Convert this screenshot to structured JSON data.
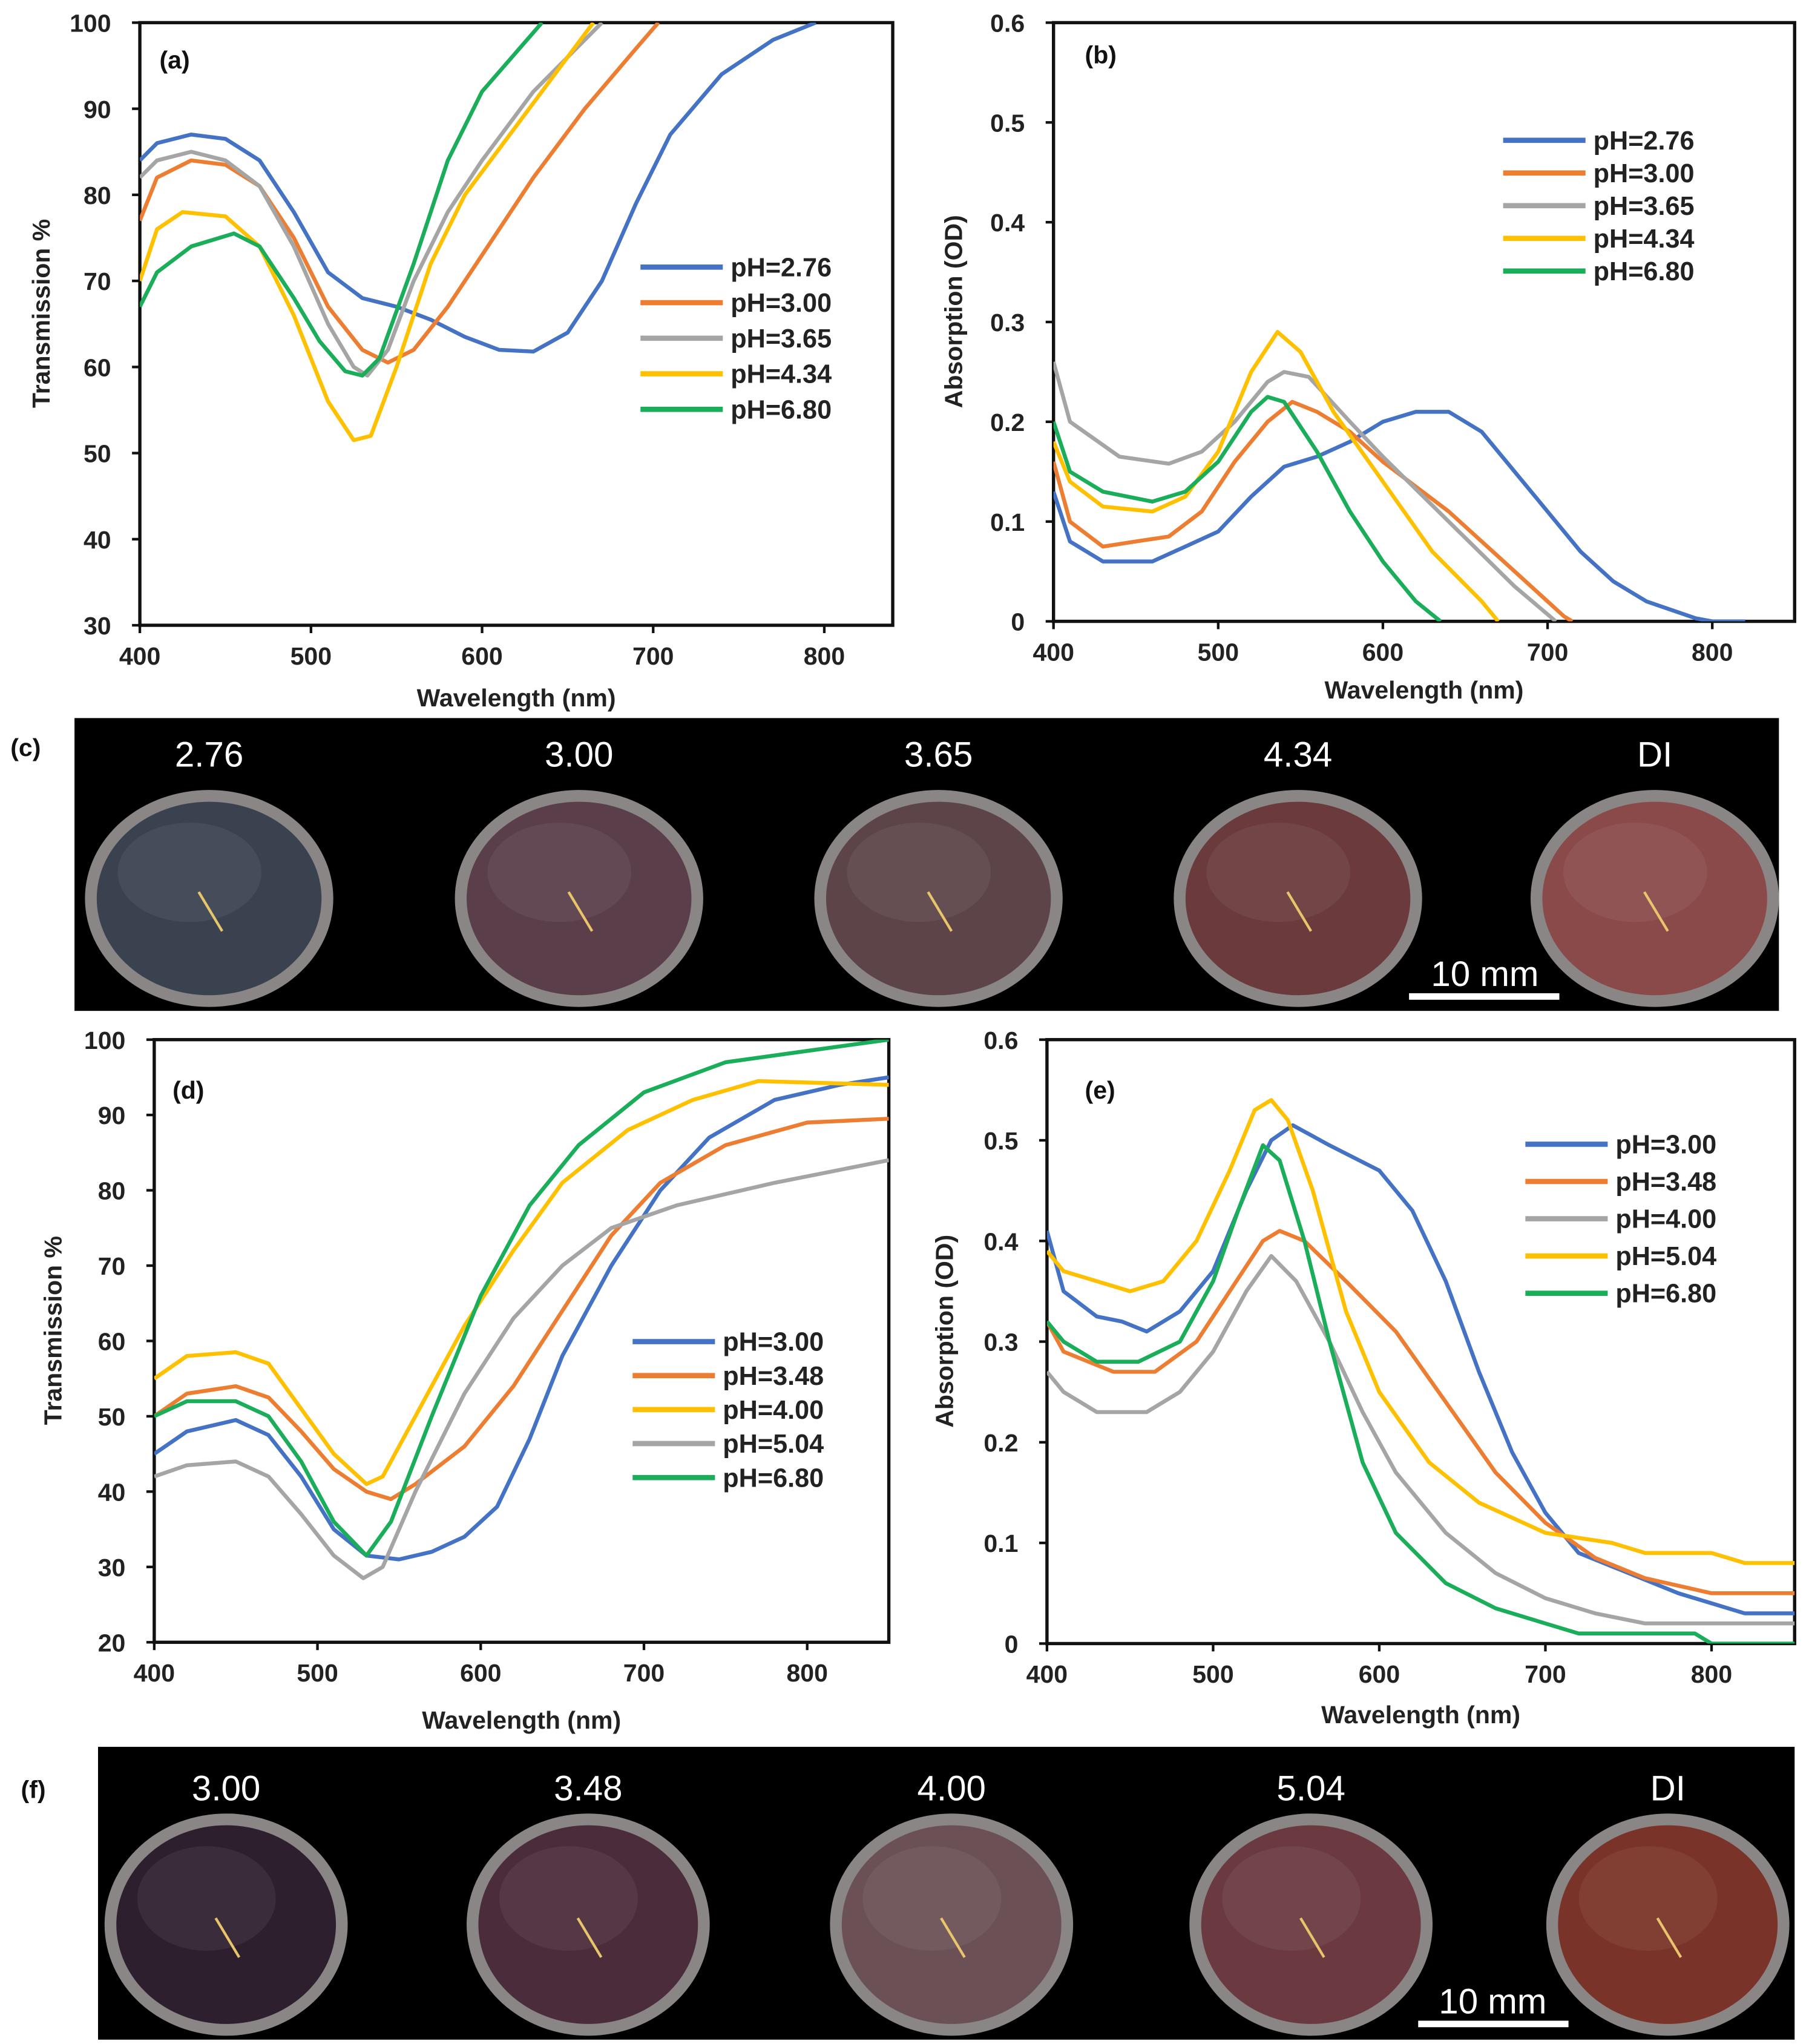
{
  "colors": {
    "blue": "#4472c4",
    "orange": "#ed7d31",
    "gray": "#a5a5a5",
    "yellow": "#ffc000",
    "green": "#1aae5a"
  },
  "chart_data": [
    {
      "panel": "(a)",
      "type": "line",
      "xlabel": "Wavelength (nm)",
      "ylabel": "Transmission %",
      "xlim": [
        400,
        840
      ],
      "ylim": [
        30,
        100
      ],
      "xticks": [
        "400",
        "500",
        "600",
        "700",
        "800"
      ],
      "yticks": [
        "30",
        "40",
        "50",
        "60",
        "70",
        "80",
        "90",
        "100"
      ],
      "legend_position": "right-middle",
      "series": [
        {
          "name": "pH=2.76",
          "color": "blue",
          "x": [
            400,
            410,
            430,
            450,
            470,
            490,
            510,
            530,
            550,
            570,
            590,
            610,
            630,
            650,
            670,
            690,
            710,
            740,
            770,
            795
          ],
          "y": [
            84,
            86,
            87,
            86.5,
            84,
            78,
            71,
            68,
            67,
            65.5,
            63.5,
            62,
            61.8,
            64,
            70,
            79,
            87,
            94,
            98,
            100
          ]
        },
        {
          "name": "pH=3.00",
          "color": "orange",
          "x": [
            400,
            410,
            430,
            450,
            470,
            490,
            510,
            530,
            545,
            560,
            580,
            600,
            630,
            660,
            690,
            703
          ],
          "y": [
            77,
            82,
            84,
            83.5,
            81,
            75,
            67,
            62,
            60.5,
            62,
            67,
            73,
            82,
            90,
            97,
            100
          ]
        },
        {
          "name": "pH=3.65",
          "color": "gray",
          "x": [
            400,
            410,
            430,
            450,
            470,
            490,
            510,
            525,
            533,
            545,
            560,
            580,
            600,
            630,
            670
          ],
          "y": [
            82,
            84,
            85,
            84,
            81,
            74,
            65,
            60,
            59,
            62,
            70,
            78,
            84,
            92,
            100
          ]
        },
        {
          "name": "pH=4.34",
          "color": "yellow",
          "x": [
            400,
            410,
            425,
            450,
            470,
            490,
            510,
            525,
            535,
            550,
            570,
            590,
            620,
            665
          ],
          "y": [
            70,
            76,
            78,
            77.5,
            74,
            66,
            56,
            51.5,
            52,
            60,
            72,
            80,
            88,
            100
          ]
        },
        {
          "name": "pH=6.80",
          "color": "green",
          "x": [
            400,
            410,
            430,
            455,
            470,
            490,
            505,
            520,
            530,
            540,
            560,
            580,
            600,
            635
          ],
          "y": [
            67,
            71,
            74,
            75.5,
            74,
            68,
            63,
            59.5,
            59,
            61,
            72,
            84,
            92,
            100
          ]
        }
      ]
    },
    {
      "panel": "(b)",
      "type": "line",
      "xlabel": "Wavelength (nm)",
      "ylabel": "Absorption (OD)",
      "xlim": [
        400,
        850
      ],
      "ylim": [
        0,
        0.6
      ],
      "xticks": [
        "400",
        "500",
        "600",
        "700",
        "800"
      ],
      "yticks": [
        "0",
        "0.1",
        "0.2",
        "0.3",
        "0.4",
        "0.5",
        "0.6"
      ],
      "legend_position": "top-right",
      "series": [
        {
          "name": "pH=2.76",
          "color": "blue",
          "x": [
            400,
            410,
            430,
            460,
            480,
            500,
            520,
            540,
            560,
            580,
            600,
            620,
            640,
            660,
            680,
            700,
            720,
            740,
            760,
            790,
            800,
            820
          ],
          "y": [
            0.13,
            0.08,
            0.06,
            0.06,
            0.075,
            0.09,
            0.125,
            0.155,
            0.165,
            0.18,
            0.2,
            0.21,
            0.21,
            0.19,
            0.15,
            0.11,
            0.07,
            0.04,
            0.02,
            0.003,
            0,
            0
          ]
        },
        {
          "name": "pH=3.00",
          "color": "orange",
          "x": [
            400,
            410,
            430,
            450,
            470,
            490,
            510,
            530,
            545,
            560,
            580,
            600,
            640,
            680,
            710,
            715
          ],
          "y": [
            0.16,
            0.1,
            0.075,
            0.08,
            0.085,
            0.11,
            0.16,
            0.2,
            0.22,
            0.21,
            0.19,
            0.16,
            0.11,
            0.05,
            0.005,
            0
          ]
        },
        {
          "name": "pH=3.65",
          "color": "gray",
          "x": [
            400,
            410,
            440,
            470,
            490,
            510,
            530,
            540,
            555,
            580,
            600,
            640,
            680,
            705
          ],
          "y": [
            0.26,
            0.2,
            0.165,
            0.158,
            0.17,
            0.2,
            0.24,
            0.25,
            0.245,
            0.2,
            0.165,
            0.1,
            0.035,
            0
          ]
        },
        {
          "name": "pH=4.34",
          "color": "yellow",
          "x": [
            400,
            410,
            430,
            460,
            480,
            500,
            520,
            536,
            550,
            570,
            600,
            630,
            660,
            670
          ],
          "y": [
            0.18,
            0.14,
            0.115,
            0.11,
            0.125,
            0.17,
            0.25,
            0.29,
            0.27,
            0.21,
            0.14,
            0.07,
            0.02,
            0
          ]
        },
        {
          "name": "pH=6.80",
          "color": "green",
          "x": [
            400,
            410,
            430,
            460,
            480,
            500,
            520,
            530,
            540,
            560,
            580,
            600,
            620,
            635
          ],
          "y": [
            0.2,
            0.15,
            0.13,
            0.12,
            0.13,
            0.16,
            0.21,
            0.225,
            0.22,
            0.17,
            0.11,
            0.06,
            0.02,
            0
          ]
        }
      ]
    },
    {
      "panel": "(d)",
      "type": "line",
      "xlabel": "Wavelength (nm)",
      "ylabel": "Transmission %",
      "xlim": [
        400,
        850
      ],
      "ylim": [
        20,
        100
      ],
      "xticks": [
        "400",
        "500",
        "600",
        "700",
        "800"
      ],
      "yticks": [
        "20",
        "30",
        "40",
        "50",
        "60",
        "70",
        "80",
        "90",
        "100"
      ],
      "legend_position": "right-middle",
      "series": [
        {
          "name": "pH=3.00",
          "color": "blue",
          "x": [
            400,
            420,
            450,
            470,
            490,
            510,
            530,
            550,
            570,
            590,
            610,
            630,
            650,
            680,
            710,
            740,
            780,
            820,
            850
          ],
          "y": [
            45,
            48,
            49.5,
            47.5,
            42,
            35,
            31.5,
            31,
            32,
            34,
            38,
            47,
            58,
            70,
            80,
            87,
            92,
            94,
            95
          ]
        },
        {
          "name": "pH=3.48",
          "color": "orange",
          "x": [
            400,
            420,
            450,
            470,
            490,
            510,
            530,
            545,
            560,
            590,
            620,
            650,
            680,
            710,
            750,
            800,
            850
          ],
          "y": [
            50,
            53,
            54,
            52.5,
            48,
            43,
            40,
            39,
            41,
            46,
            54,
            64,
            74,
            81,
            86,
            89,
            89.5
          ]
        },
        {
          "name": "pH=4.00",
          "color": "yellow",
          "x": [
            400,
            420,
            450,
            470,
            490,
            510,
            530,
            540,
            560,
            590,
            620,
            650,
            690,
            730,
            770,
            850
          ],
          "y": [
            55,
            58,
            58.5,
            57,
            51,
            45,
            41,
            42,
            50,
            62,
            72,
            81,
            88,
            92,
            94.5,
            94
          ]
        },
        {
          "name": "pH=5.04",
          "color": "gray",
          "x": [
            400,
            420,
            450,
            470,
            490,
            510,
            528,
            540,
            560,
            590,
            620,
            650,
            680,
            720,
            780,
            850
          ],
          "y": [
            42,
            43.5,
            44,
            42,
            37,
            31.5,
            28.5,
            30,
            40,
            53,
            63,
            70,
            75,
            78,
            81,
            84
          ]
        },
        {
          "name": "pH=6.80",
          "color": "green",
          "x": [
            400,
            420,
            450,
            470,
            490,
            510,
            530,
            545,
            570,
            600,
            630,
            660,
            700,
            750,
            800,
            850
          ],
          "y": [
            50,
            52,
            52,
            50,
            44,
            36,
            31.5,
            36,
            50,
            66,
            78,
            86,
            93,
            97,
            98.5,
            100
          ]
        }
      ]
    },
    {
      "panel": "(e)",
      "type": "line",
      "xlabel": "Wavelength (nm)",
      "ylabel": "Absorption (OD)",
      "xlim": [
        400,
        850
      ],
      "ylim": [
        0,
        0.6
      ],
      "xticks": [
        "400",
        "500",
        "600",
        "700",
        "800"
      ],
      "yticks": [
        "0",
        "0.1",
        "0.2",
        "0.3",
        "0.4",
        "0.5",
        "0.6"
      ],
      "legend_position": "top-right",
      "series": [
        {
          "name": "pH=3.00",
          "color": "blue",
          "x": [
            400,
            410,
            430,
            445,
            460,
            480,
            500,
            520,
            535,
            548,
            570,
            600,
            620,
            640,
            660,
            680,
            700,
            720,
            750,
            780,
            800,
            820,
            850
          ],
          "y": [
            0.41,
            0.35,
            0.325,
            0.32,
            0.31,
            0.33,
            0.37,
            0.45,
            0.5,
            0.515,
            0.495,
            0.47,
            0.43,
            0.36,
            0.27,
            0.19,
            0.13,
            0.09,
            0.07,
            0.05,
            0.04,
            0.03,
            0.03
          ]
        },
        {
          "name": "pH=3.48",
          "color": "orange",
          "x": [
            400,
            410,
            440,
            465,
            490,
            510,
            530,
            540,
            555,
            580,
            610,
            640,
            670,
            700,
            730,
            760,
            800,
            850
          ],
          "y": [
            0.32,
            0.29,
            0.27,
            0.27,
            0.3,
            0.35,
            0.4,
            0.41,
            0.4,
            0.36,
            0.31,
            0.24,
            0.17,
            0.12,
            0.085,
            0.065,
            0.05,
            0.05
          ]
        },
        {
          "name": "pH=4.00",
          "color": "gray",
          "x": [
            400,
            410,
            430,
            460,
            480,
            500,
            520,
            535,
            550,
            570,
            590,
            610,
            640,
            670,
            700,
            730,
            760,
            850
          ],
          "y": [
            0.27,
            0.25,
            0.23,
            0.23,
            0.25,
            0.29,
            0.35,
            0.385,
            0.36,
            0.3,
            0.23,
            0.17,
            0.11,
            0.07,
            0.045,
            0.03,
            0.02,
            0.02
          ]
        },
        {
          "name": "pH=5.04",
          "color": "yellow",
          "x": [
            400,
            410,
            430,
            450,
            470,
            490,
            510,
            525,
            535,
            545,
            560,
            580,
            600,
            630,
            660,
            700,
            740,
            760,
            800,
            820,
            850
          ],
          "y": [
            0.39,
            0.37,
            0.36,
            0.35,
            0.36,
            0.4,
            0.47,
            0.53,
            0.54,
            0.52,
            0.45,
            0.33,
            0.25,
            0.18,
            0.14,
            0.11,
            0.1,
            0.09,
            0.09,
            0.08,
            0.08
          ]
        },
        {
          "name": "pH=6.80",
          "color": "green",
          "x": [
            400,
            410,
            430,
            455,
            480,
            500,
            515,
            530,
            540,
            555,
            570,
            590,
            610,
            640,
            670,
            700,
            720,
            790,
            800,
            850
          ],
          "y": [
            0.32,
            0.3,
            0.28,
            0.28,
            0.3,
            0.36,
            0.43,
            0.495,
            0.48,
            0.4,
            0.3,
            0.18,
            0.11,
            0.06,
            0.035,
            0.02,
            0.01,
            0.01,
            0,
            0
          ]
        }
      ]
    }
  ],
  "photos": [
    {
      "panel": "(c)",
      "scale_bar": "10 mm",
      "dishes": [
        {
          "label": "2.76",
          "color": "#3a4250"
        },
        {
          "label": "3.00",
          "color": "#5a3e4a"
        },
        {
          "label": "3.65",
          "color": "#5d4448"
        },
        {
          "label": "4.34",
          "color": "#6a3a3c"
        },
        {
          "label": "DI",
          "color": "#8a4a4a"
        }
      ]
    },
    {
      "panel": "(f)",
      "scale_bar": "10 mm",
      "dishes": [
        {
          "label": "3.00",
          "color": "#2e1f2e"
        },
        {
          "label": "3.48",
          "color": "#4a2c3a"
        },
        {
          "label": "4.00",
          "color": "#6b5056"
        },
        {
          "label": "5.04",
          "color": "#6a3a40"
        },
        {
          "label": "DI",
          "color": "#7a3328"
        }
      ]
    }
  ]
}
